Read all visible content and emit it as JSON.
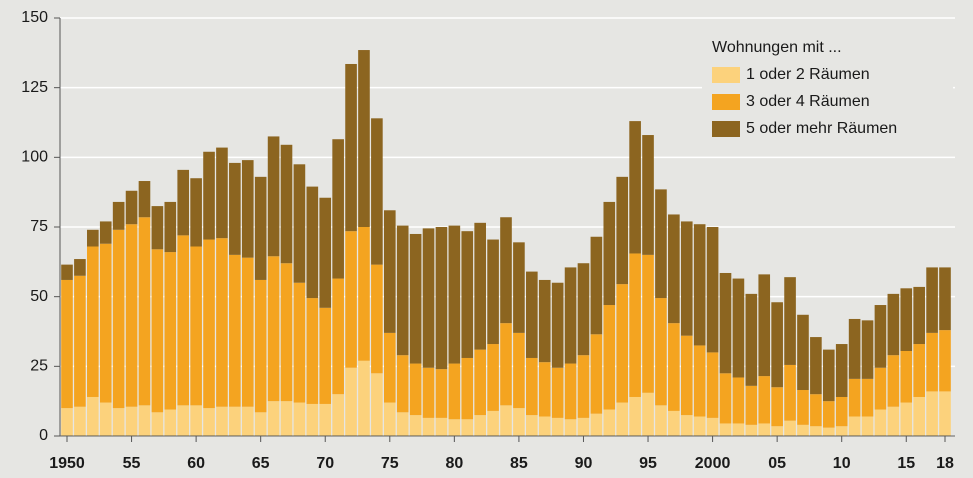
{
  "chart_data": {
    "type": "stacked_bar",
    "legend_title": "Wohnungen mit ...",
    "legend": "top-right",
    "grid": true,
    "categories": [
      "1950",
      null,
      null,
      null,
      null,
      "55",
      null,
      null,
      null,
      null,
      "60",
      null,
      null,
      null,
      null,
      "65",
      null,
      null,
      null,
      null,
      "70",
      null,
      null,
      null,
      null,
      "75",
      null,
      null,
      null,
      null,
      "80",
      null,
      null,
      null,
      null,
      "85",
      null,
      null,
      null,
      null,
      "90",
      null,
      null,
      null,
      null,
      "95",
      null,
      null,
      null,
      null,
      "2000",
      null,
      null,
      null,
      null,
      "05",
      null,
      null,
      null,
      null,
      "10",
      null,
      null,
      null,
      null,
      "15",
      null,
      null,
      "18"
    ],
    "ylim": [
      0,
      150
    ],
    "yticks": [
      0,
      25,
      50,
      75,
      100,
      125,
      150
    ],
    "series": [
      {
        "name": "1 oder 2 Räumen",
        "color": "#fcd27c",
        "values": [
          10,
          10.5,
          14,
          12,
          10,
          10.5,
          11,
          8.5,
          9.5,
          11,
          11,
          10,
          10.5,
          10.5,
          10.5,
          8.5,
          12.5,
          12.5,
          12,
          11.5,
          11.5,
          15,
          24.5,
          27,
          22.5,
          12,
          8.5,
          7.5,
          6.5,
          6.5,
          6,
          6,
          7.5,
          9,
          11,
          10,
          7.5,
          7,
          6.5,
          6,
          6.5,
          8,
          9.5,
          12,
          14,
          15.5,
          11,
          9,
          7.5,
          7,
          6.5,
          4.5,
          4.5,
          4,
          4.5,
          3.5,
          5.5,
          4,
          3.5,
          3,
          3.5,
          7,
          7,
          9.5,
          10.5,
          12,
          14,
          16,
          16
        ]
      },
      {
        "name": "3 oder 4 Räumen",
        "color": "#f4a420",
        "values": [
          46,
          47,
          54,
          57,
          64,
          65.5,
          67.5,
          58.5,
          56.5,
          61,
          57,
          60.5,
          60.5,
          54.5,
          53.5,
          47.5,
          52,
          49.5,
          43,
          38,
          34.5,
          41.5,
          49,
          48,
          39,
          25,
          20.5,
          18.5,
          18,
          17.5,
          20,
          22,
          23.5,
          24,
          29.5,
          27,
          20.5,
          19.5,
          18,
          20,
          22.5,
          28.5,
          37.5,
          42.5,
          51.5,
          49.5,
          38.5,
          31.5,
          28.5,
          25.5,
          23.5,
          18,
          16.5,
          14,
          17,
          14,
          20,
          12.5,
          11.5,
          9.5,
          10.5,
          13.5,
          13.5,
          15,
          18.5,
          18.5,
          19,
          21,
          22
        ]
      },
      {
        "name": "5 oder mehr Räumen",
        "color": "#8c6520",
        "values": [
          5.5,
          6,
          6,
          8,
          10,
          12,
          13,
          15.5,
          18,
          23.5,
          24.5,
          31.5,
          32.5,
          33,
          35,
          37,
          43,
          42.5,
          42.5,
          40,
          39.5,
          50,
          60,
          63.5,
          52.5,
          44,
          46.5,
          46.5,
          50,
          51,
          49.5,
          45.5,
          45.5,
          37.5,
          38,
          32.5,
          31,
          29.5,
          30.5,
          34.5,
          33,
          35,
          37,
          38.5,
          47.5,
          43,
          39,
          39,
          41,
          43.5,
          45,
          36,
          35.5,
          33,
          36.5,
          30.5,
          31.5,
          27,
          20.5,
          18.5,
          19,
          21.5,
          21,
          22.5,
          22,
          22.5,
          20.5,
          23.5,
          22.5
        ]
      }
    ]
  }
}
